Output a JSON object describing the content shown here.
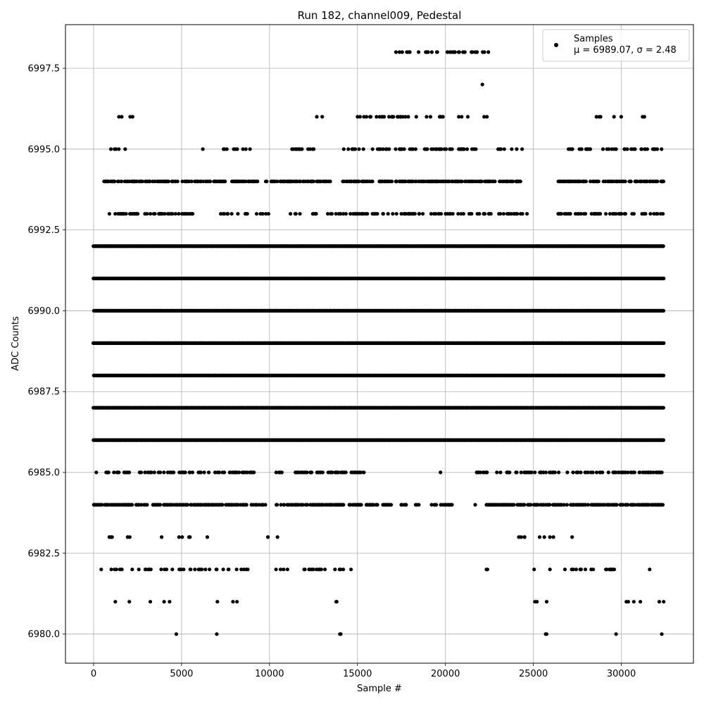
{
  "chart_data": {
    "type": "scatter",
    "title": "Run 182, channel009, Pedestal",
    "xlabel": "Sample #",
    "ylabel": "ADC Counts",
    "xlim": [
      -1600,
      34100
    ],
    "ylim": [
      6979.1,
      6998.85
    ],
    "xticks": [
      0,
      5000,
      10000,
      15000,
      20000,
      25000,
      30000
    ],
    "yticks": [
      6980.0,
      6982.5,
      6985.0,
      6987.5,
      6990.0,
      6992.5,
      6995.0,
      6997.5
    ],
    "xtick_labels": [
      "0",
      "5000",
      "10000",
      "15000",
      "20000",
      "25000",
      "30000"
    ],
    "ytick_labels": [
      "6980.0",
      "6982.5",
      "6985.0",
      "6987.5",
      "6990.0",
      "6992.5",
      "6995.0",
      "6997.5"
    ],
    "grid": true,
    "legend_position": "top-right",
    "marker_color": "#000000",
    "n_samples": 32400,
    "series": [
      {
        "name": "Samples",
        "stats_label": "μ = 6989.07, σ = 2.48",
        "levels": [
          {
            "y": 6992,
            "density": 1.0
          },
          {
            "y": 6991,
            "density": 1.0
          },
          {
            "y": 6990,
            "density": 1.0
          },
          {
            "y": 6989,
            "density": 1.0
          },
          {
            "y": 6988,
            "density": 1.0
          },
          {
            "y": 6987,
            "density": 1.0
          },
          {
            "y": 6986,
            "density": 1.0
          },
          {
            "y": 6994,
            "density": 0.55,
            "ranges": [
              [
                600,
                4800
              ],
              [
                5000,
                7500
              ],
              [
                7800,
                9500
              ],
              [
                9800,
                13500
              ],
              [
                14100,
                16000
              ],
              [
                16200,
                24400
              ],
              [
                26400,
                32400
              ]
            ]
          },
          {
            "y": 6984,
            "density": 0.55,
            "ranges": [
              [
                0,
                9800
              ],
              [
                10400,
                14200
              ],
              [
                14500,
                16900
              ],
              [
                17500,
                17900
              ],
              [
                18300,
                18500
              ],
              [
                19200,
                20400
              ],
              [
                21600,
                21700
              ],
              [
                22300,
                32400
              ]
            ]
          },
          {
            "y": 6993,
            "density": 0.3,
            "ranges": [
              [
                900,
                5800
              ],
              [
                6900,
                10100
              ],
              [
                11200,
                24700
              ],
              [
                26400,
                32400
              ]
            ]
          },
          {
            "y": 6985,
            "density": 0.3,
            "ranges": [
              [
                0,
                9700
              ],
              [
                10400,
                15400
              ],
              [
                19700,
                19800
              ],
              [
                20800,
                20900
              ],
              [
                21700,
                26500
              ],
              [
                26900,
                32400
              ]
            ]
          },
          {
            "y": 6995,
            "density": 0.25,
            "ranges": [
              [
                1000,
                1800
              ],
              [
                4400,
                4500
              ],
              [
                6200,
                6300
              ],
              [
                7400,
                8900
              ],
              [
                11200,
                12600
              ],
              [
                14100,
                21800
              ],
              [
                22900,
                24400
              ],
              [
                26900,
                32400
              ]
            ]
          },
          {
            "y": 6996,
            "density": 0.15,
            "ranges": [
              [
                1300,
                2500
              ],
              [
                10000,
                10100
              ],
              [
                11900,
                13000
              ],
              [
                14300,
                22600
              ],
              [
                23900,
                24000
              ],
              [
                28500,
                31300
              ]
            ]
          },
          {
            "y": 6982,
            "density": 0.15,
            "ranges": [
              [
                200,
                8800
              ],
              [
                9700,
                14800
              ],
              [
                16500,
                16600
              ],
              [
                22300,
                22900
              ],
              [
                25000,
                29700
              ],
              [
                31600,
                31700
              ]
            ]
          },
          {
            "y": 6981,
            "density": 0.08,
            "ranges": [
              [
                300,
                4800
              ],
              [
                6500,
                8300
              ],
              [
                10500,
                11800
              ],
              [
                13700,
                13900
              ],
              [
                25000,
                26000
              ],
              [
                29600,
                32400
              ]
            ]
          },
          {
            "y": 6983,
            "density": 0.08,
            "ranges": [
              [
                300,
                7000
              ],
              [
                9300,
                10500
              ],
              [
                13700,
                13800
              ],
              [
                23800,
                27700
              ],
              [
                32000,
                32100
              ]
            ]
          },
          {
            "y": 6998,
            "density": 0.2,
            "ranges": [
              [
                16900,
                22500
              ]
            ]
          },
          {
            "y": 6997,
            "points": [
              22100
            ]
          },
          {
            "y": 6980,
            "points": [
              4700,
              7000,
              14000,
              14050,
              25700,
              25750,
              29700,
              32300
            ]
          }
        ]
      }
    ]
  }
}
